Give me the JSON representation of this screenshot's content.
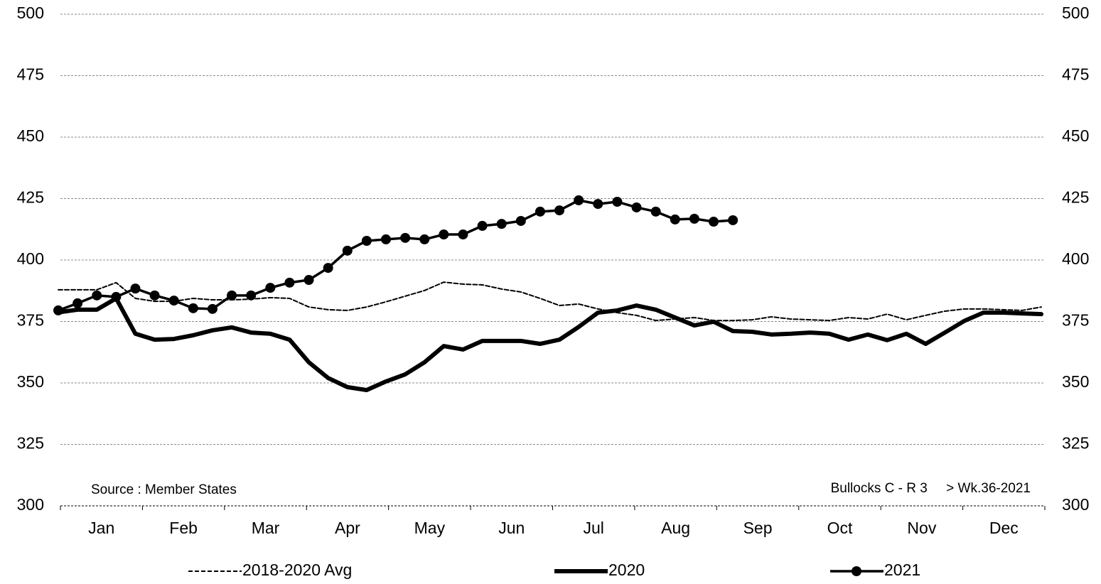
{
  "chart_data": {
    "type": "line",
    "x_axis_labels": [
      "Jan",
      "Feb",
      "Mar",
      "Apr",
      "May",
      "Jun",
      "Jul",
      "Aug",
      "Sep",
      "Oct",
      "Nov",
      "Dec"
    ],
    "ylim": [
      300,
      500
    ],
    "yticks": [
      300,
      325,
      350,
      375,
      400,
      425,
      450,
      475,
      500
    ],
    "grid": true,
    "source": "Source : Member  States",
    "annotation": "Bullocks C - R 3     > Wk.36-2021",
    "annotation_color": "#9b1c1c",
    "series": [
      {
        "name": "2018-2020 Avg",
        "color": "#000000",
        "line_style": "dashed",
        "line_width": 2,
        "marker": false,
        "values": [
          387.9,
          387.9,
          387.9,
          390.8,
          384.4,
          383.2,
          383.2,
          384.4,
          383.8,
          383.8,
          384.1,
          384.7,
          384.4,
          380.9,
          379.8,
          379.5,
          380.9,
          383.0,
          385.3,
          387.6,
          391.0,
          390.2,
          389.9,
          388.2,
          387.0,
          384.4,
          381.5,
          382.1,
          380.1,
          378.6,
          377.5,
          375.4,
          376.0,
          376.6,
          375.4,
          375.4,
          375.7,
          376.9,
          376.0,
          375.7,
          375.4,
          376.6,
          376.0,
          378.0,
          375.7,
          377.5,
          379.2,
          380.1,
          380.1,
          379.8,
          379.5,
          380.9
        ]
      },
      {
        "name": "2020",
        "color": "#000000",
        "line_style": "solid",
        "line_width": 6,
        "marker": false,
        "values": [
          378.7,
          379.8,
          379.8,
          384.4,
          370.0,
          367.6,
          367.9,
          369.4,
          371.4,
          372.6,
          370.5,
          370.0,
          367.6,
          358.4,
          352.0,
          348.3,
          347.1,
          350.6,
          353.5,
          358.4,
          365.0,
          363.6,
          367.1,
          367.1,
          367.1,
          365.9,
          367.6,
          372.8,
          378.6,
          379.5,
          381.5,
          379.8,
          376.6,
          373.4,
          374.9,
          371.1,
          370.8,
          369.7,
          370.0,
          370.5,
          370.0,
          367.6,
          369.7,
          367.4,
          370.0,
          365.9,
          370.5,
          375.2,
          378.6,
          378.6,
          378.3,
          378.0
        ]
      },
      {
        "name": "2021",
        "color": "#000000",
        "line_style": "solid",
        "line_width": 3.5,
        "marker": true,
        "values": [
          379.5,
          382.4,
          385.6,
          385.0,
          388.4,
          385.6,
          383.5,
          380.4,
          380.1,
          385.6,
          385.6,
          388.7,
          390.8,
          391.9,
          396.8,
          403.8,
          407.8,
          408.4,
          409.0,
          408.4,
          410.4,
          410.4,
          413.9,
          414.7,
          415.9,
          419.7,
          420.2,
          424.3,
          422.8,
          423.7,
          421.4,
          419.7,
          416.5,
          416.8,
          415.6,
          416.2
        ]
      }
    ]
  }
}
